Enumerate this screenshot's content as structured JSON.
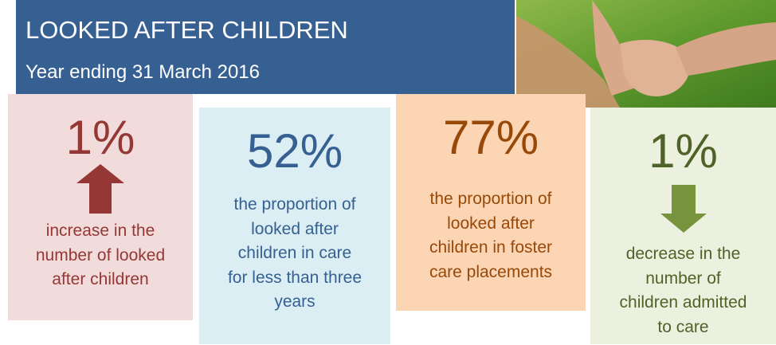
{
  "header": {
    "title": "LOOKED AFTER CHILDREN",
    "subtitle": "Year ending 31 March 2016"
  },
  "cards": [
    {
      "value": "1%",
      "lines": [
        "increase in the",
        "number of looked",
        "after children"
      ]
    },
    {
      "value": "52%",
      "lines": [
        "the proportion of",
        "looked after",
        "children in care",
        "for less than three",
        "years"
      ]
    },
    {
      "value": "77%",
      "lines": [
        "the proportion of",
        "looked after",
        "children in foster",
        "care placements"
      ]
    },
    {
      "value": "1%",
      "lines": [
        "decrease in the",
        "number of",
        "children admitted",
        "to care"
      ]
    }
  ]
}
